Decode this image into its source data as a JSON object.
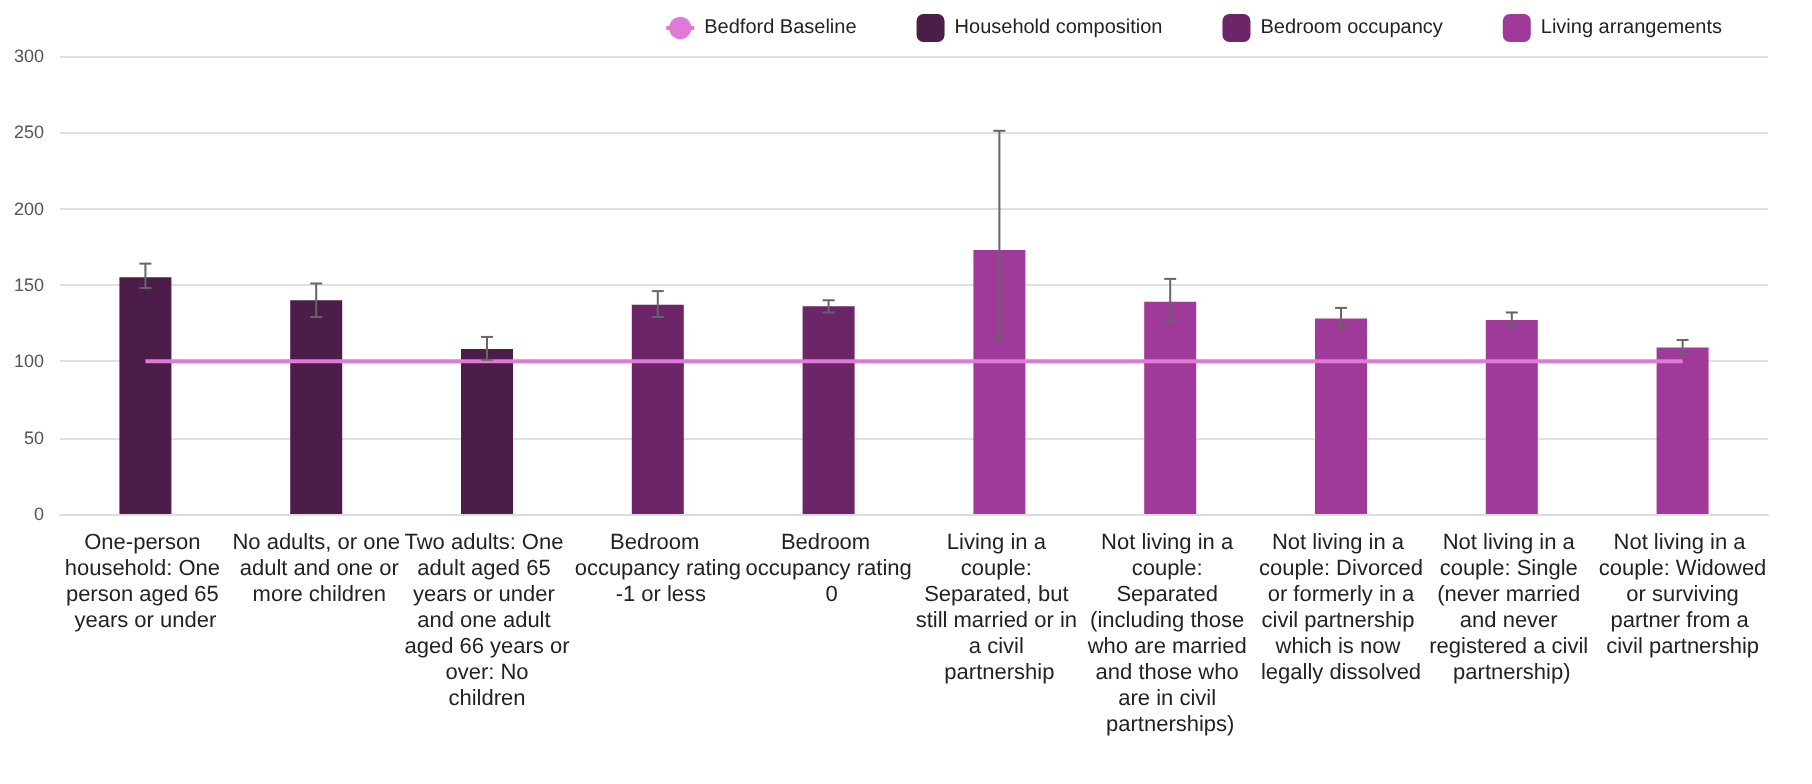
{
  "chart_data": {
    "type": "bar",
    "categories": [
      "One-person household: One person aged 65 years or under",
      "No adults, or one adult and one or more children",
      "Two adults: One adult aged 65 years or under and one adult aged 66 years or over: No children",
      "Bedroom occupancy rating -1 or less",
      "Bedroom occupancy rating 0",
      "Living in a couple: Separated, but still married or in a civil partnership",
      "Not living in a couple: Separated (including those who are married and those who are in civil partnerships)",
      "Not living in a couple: Divorced or formerly in a civil partnership which is now legally dissolved",
      "Not living in a couple: Single (never married and never registered a civil partnership)",
      "Not living in a couple: Widowed or surviving partner from a civil partnership"
    ],
    "series": [
      {
        "name": "Bedford Baseline",
        "type": "line",
        "color": "#e07ad8",
        "values": [
          100,
          100,
          100,
          100,
          100,
          100,
          100,
          100,
          100,
          100
        ]
      },
      {
        "name": "Household composition",
        "color": "#4d1d4a",
        "values": [
          155,
          140,
          108,
          null,
          null,
          null,
          null,
          null,
          null,
          null
        ],
        "errors": [
          [
            148,
            164
          ],
          [
            129,
            151
          ],
          [
            101,
            116
          ],
          null,
          null,
          null,
          null,
          null,
          null,
          null
        ]
      },
      {
        "name": "Bedroom occupancy",
        "color": "#6b2568",
        "values": [
          null,
          null,
          null,
          137,
          136,
          null,
          null,
          null,
          null,
          null
        ],
        "errors": [
          null,
          null,
          null,
          [
            129,
            146
          ],
          [
            132,
            140
          ],
          null,
          null,
          null,
          null,
          null
        ]
      },
      {
        "name": "Living arrangements",
        "color": "#a03a9a",
        "values": [
          null,
          null,
          null,
          null,
          null,
          173,
          139,
          128,
          127,
          109
        ],
        "errors": [
          null,
          null,
          null,
          null,
          null,
          [
            115,
            251
          ],
          [
            126,
            154
          ],
          [
            122,
            135
          ],
          [
            123,
            132
          ],
          [
            105,
            114
          ]
        ]
      }
    ],
    "ylim": [
      0,
      300
    ],
    "yticks": [
      0,
      50,
      100,
      150,
      200,
      250,
      300
    ],
    "grid": "y",
    "legend": "top right",
    "marker": "none"
  }
}
